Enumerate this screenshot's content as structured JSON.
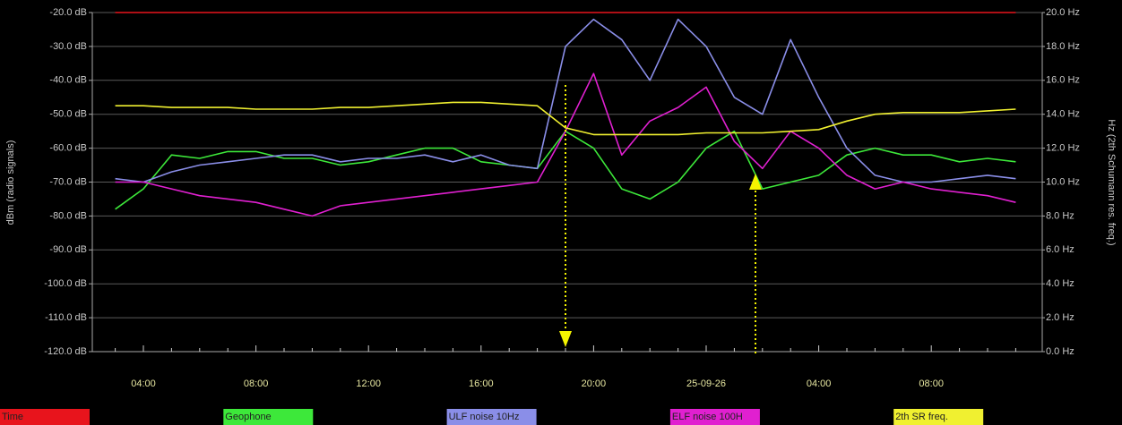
{
  "chart_data": {
    "type": "line",
    "y_label": "dBm (radio signals)",
    "y2_label": "Hz (2th Schumann res. freq.)",
    "categories": [
      null,
      "04:00",
      null,
      null,
      null,
      "08:00",
      null,
      null,
      null,
      "12:00",
      null,
      null,
      null,
      "16:00",
      null,
      null,
      null,
      "20:00",
      null,
      null,
      null,
      "25-09-26",
      null,
      null,
      null,
      "04:00",
      null,
      null,
      null,
      "08:00",
      null,
      null,
      null
    ],
    "series": [
      {
        "name": "Time",
        "color": "#e8141c",
        "values": [
          -20,
          -20,
          -20,
          -20,
          -20,
          -20,
          -20,
          -20,
          -20,
          -20,
          -20,
          -20,
          -20,
          -20,
          -20,
          -20,
          -20,
          -20,
          -20,
          -20,
          -20,
          -20,
          -20,
          -20,
          -20,
          -20,
          -20,
          -20,
          -20,
          -20,
          -20,
          -20,
          -20
        ]
      },
      {
        "name": "Geophone",
        "color": "#3de83a",
        "values": [
          -78,
          -72,
          -62,
          -63,
          -61,
          -61,
          -63,
          -63,
          -65,
          -64,
          -62,
          -60,
          -60,
          -64,
          -65,
          -66,
          -55,
          -60,
          -72,
          -75,
          -70,
          -60,
          -55,
          -72,
          -70,
          -68,
          -62,
          -60,
          -62,
          -62,
          -64,
          -63,
          -64
        ]
      },
      {
        "name": "ULF noise 10Hz",
        "color": "#8a8ee8",
        "values": [
          -69,
          -70,
          -67,
          -65,
          -64,
          -63,
          -62,
          -62,
          -64,
          -63,
          -63,
          -62,
          -64,
          -62,
          -65,
          -66,
          -30,
          -22,
          -28,
          -40,
          -22,
          -30,
          -45,
          -50,
          -28,
          -45,
          -60,
          -68,
          -70,
          -70,
          -69,
          -68,
          -69
        ]
      },
      {
        "name": "ELF noise 100H",
        "color": "#e020d0",
        "values": [
          -70,
          -70,
          -72,
          -74,
          -75,
          -76,
          -78,
          -80,
          -77,
          -76,
          -75,
          -74,
          -73,
          -72,
          -71,
          -70,
          -55,
          -38,
          -62,
          -52,
          -48,
          -42,
          -58,
          -66,
          -55,
          -60,
          -68,
          -72,
          -70,
          -72,
          -73,
          -74,
          -76
        ]
      },
      {
        "name": "2th SR freq.",
        "color": "#f0f030",
        "axis": "y2",
        "values": [
          14.5,
          14.5,
          14.4,
          14.4,
          14.4,
          14.3,
          14.3,
          14.3,
          14.4,
          14.4,
          14.5,
          14.6,
          14.7,
          14.7,
          14.6,
          14.5,
          13.2,
          12.8,
          12.8,
          12.8,
          12.8,
          12.9,
          12.9,
          12.9,
          13.0,
          13.1,
          13.6,
          14.0,
          14.1,
          14.1,
          14.1,
          14.2,
          14.3
        ]
      }
    ],
    "ylim": [
      -120,
      -20
    ],
    "yticks": [
      {
        "value": -120,
        "label": "-120.0 dB"
      },
      {
        "value": -110,
        "label": "-110.0 dB"
      },
      {
        "value": -100,
        "label": "-100.0 dB"
      },
      {
        "value": -90,
        "label": "-90.0 dB"
      },
      {
        "value": -80,
        "label": "-80.0 dB"
      },
      {
        "value": -70,
        "label": "-70.0 dB"
      },
      {
        "value": -60,
        "label": "-60.0 dB"
      },
      {
        "value": -50,
        "label": "-50.0 dB"
      },
      {
        "value": -40,
        "label": "-40.0 dB"
      },
      {
        "value": -30,
        "label": "-30.0 dB"
      },
      {
        "value": -20,
        "label": "-20.0 dB"
      }
    ],
    "y2lim": [
      0,
      20
    ],
    "y2ticks": [
      {
        "value": 0,
        "label": "0.0 Hz"
      },
      {
        "value": 2,
        "label": "2.0 Hz"
      },
      {
        "value": 4,
        "label": "4.0 Hz"
      },
      {
        "value": 6,
        "label": "6.0 Hz"
      },
      {
        "value": 8,
        "label": "8.0 Hz"
      },
      {
        "value": 10,
        "label": "10.0 Hz"
      },
      {
        "value": 12,
        "label": "12.0 Hz"
      },
      {
        "value": 14,
        "label": "14.0 Hz"
      },
      {
        "value": 16,
        "label": "16.0 Hz"
      },
      {
        "value": 18,
        "label": "18.0 Hz"
      },
      {
        "value": 20,
        "label": "20.0 Hz"
      }
    ],
    "grid": true,
    "legend": "bottom"
  }
}
